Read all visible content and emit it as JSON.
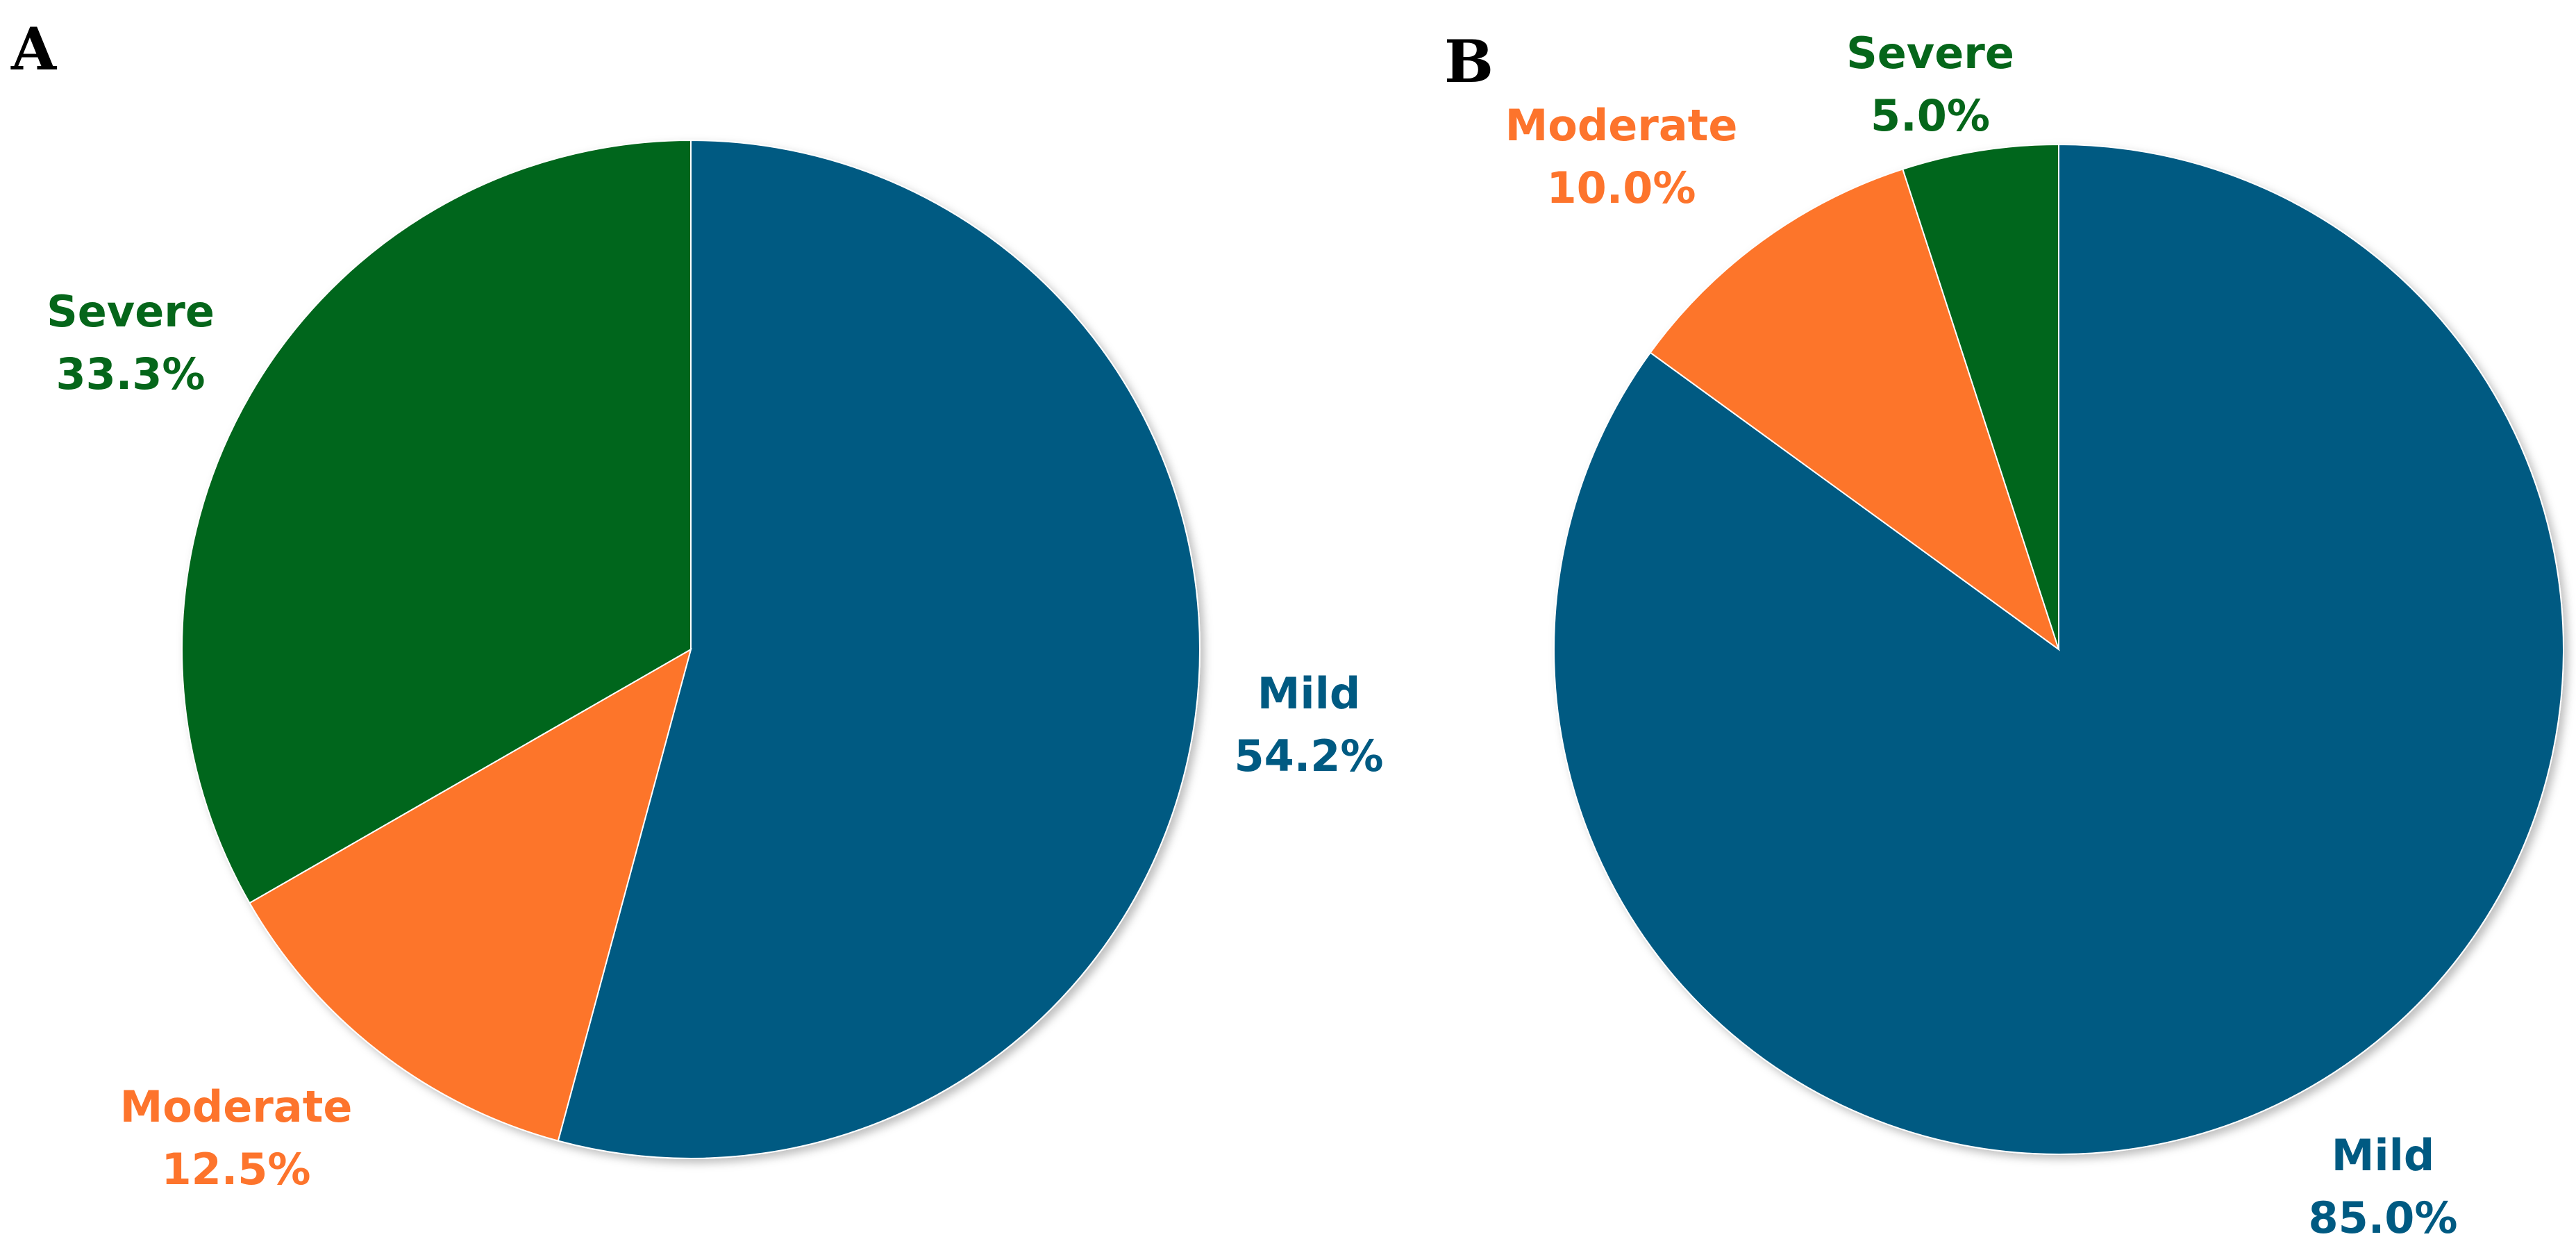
{
  "chart_data": [
    {
      "type": "pie",
      "panel_label": "A",
      "start": "top",
      "direction": "clockwise",
      "slices": [
        {
          "name": "Mild",
          "value": 54.2,
          "label": "54.2%",
          "color": "#005A82"
        },
        {
          "name": "Moderate",
          "value": 12.5,
          "label": "12.5%",
          "color": "#FD742C"
        },
        {
          "name": "Severe",
          "value": 33.3,
          "label": "33.3%",
          "color": "#05661A"
        }
      ]
    },
    {
      "type": "pie",
      "panel_label": "B",
      "start": "top",
      "direction": "clockwise",
      "slices": [
        {
          "name": "Mild",
          "value": 85.0,
          "label": "85.0%",
          "color": "#005A82"
        },
        {
          "name": "Moderate",
          "value": 10.0,
          "label": "10.0%",
          "color": "#FD742C"
        },
        {
          "name": "Severe",
          "value": 5.0,
          "label": "5.0%",
          "color": "#05661A"
        }
      ]
    }
  ]
}
